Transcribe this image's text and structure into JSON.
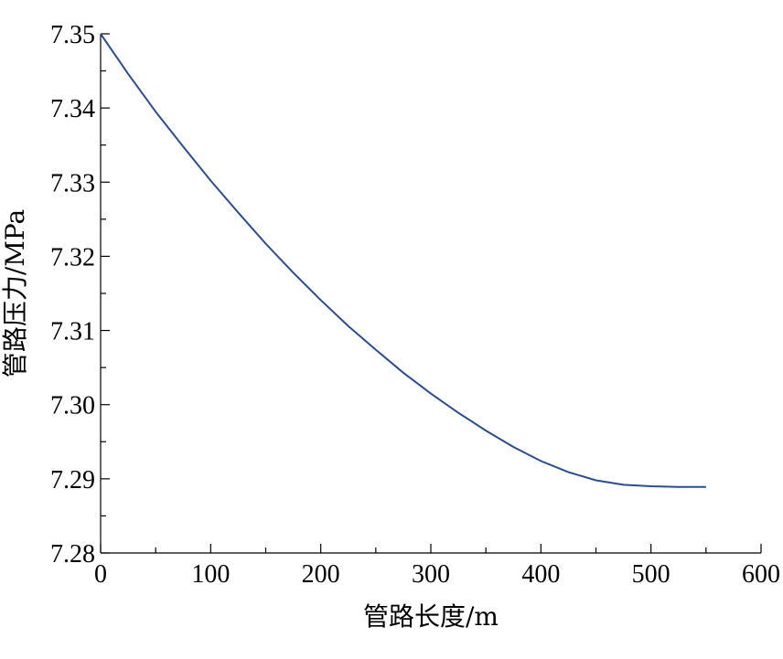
{
  "chart_data": {
    "type": "line",
    "title": "",
    "xlabel": "管路长度/m",
    "ylabel": "管路压力/MPa",
    "xlim": [
      0,
      600
    ],
    "ylim": [
      7.28,
      7.35
    ],
    "x_ticks": [
      "0",
      "100",
      "200",
      "300",
      "400",
      "500",
      "600"
    ],
    "y_ticks": [
      "7.28",
      "7.29",
      "7.30",
      "7.31",
      "7.32",
      "7.33",
      "7.34",
      "7.35"
    ],
    "grid": false,
    "series": [
      {
        "color": "#2a4d8f",
        "x": [
          0,
          25,
          50,
          75,
          100,
          125,
          150,
          175,
          200,
          225,
          250,
          275,
          300,
          325,
          350,
          375,
          400,
          425,
          450,
          475,
          500,
          525,
          550
        ],
        "y": [
          7.35,
          7.3446,
          7.3395,
          7.3348,
          7.3302,
          7.3259,
          7.3217,
          7.3178,
          7.3141,
          7.3106,
          7.3074,
          7.3043,
          7.3015,
          7.2989,
          7.2965,
          7.2943,
          7.2924,
          7.2909,
          7.2898,
          7.2892,
          7.289,
          7.2889,
          7.2889
        ]
      }
    ]
  }
}
